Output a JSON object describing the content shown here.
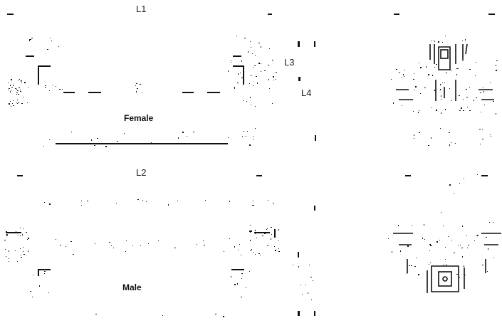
{
  "labels": {
    "l1": "L1",
    "l2": "L2",
    "l3": "L3",
    "l4": "L4",
    "female": "Female",
    "male": "Male"
  },
  "colors": {
    "ink": "#111111",
    "background": "#ffffff"
  }
}
